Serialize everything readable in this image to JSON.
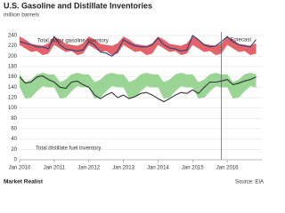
{
  "chart_data": {
    "type": "band-line",
    "title": "U.S. Gasoline and Distillate Inventories",
    "subtitle": "million barrels",
    "categories": [
      "2010-01",
      "2010-03",
      "2010-05",
      "2010-07",
      "2010-09",
      "2010-11",
      "2011-01",
      "2011-03",
      "2011-05",
      "2011-07",
      "2011-09",
      "2011-11",
      "2012-01",
      "2012-03",
      "2012-05",
      "2012-07",
      "2012-09",
      "2012-11",
      "2013-01",
      "2013-03",
      "2013-05",
      "2013-07",
      "2013-09",
      "2013-11",
      "2014-01",
      "2014-03",
      "2014-05",
      "2014-07",
      "2014-09",
      "2014-11",
      "2015-01",
      "2015-03",
      "2015-05",
      "2015-07",
      "2015-09",
      "2015-11",
      "2016-01",
      "2016-03",
      "2016-05",
      "2016-07",
      "2016-09",
      "2016-11"
    ],
    "xticks": [
      {
        "value": "2010-01",
        "label": "Jan 2010"
      },
      {
        "value": "2011-01",
        "label": "Jan 2011"
      },
      {
        "value": "2012-01",
        "label": "Jan 2012"
      },
      {
        "value": "2013-01",
        "label": "Jan 2013"
      },
      {
        "value": "2014-01",
        "label": "Jan 2014"
      },
      {
        "value": "2015-01",
        "label": "Jan 2015"
      },
      {
        "value": "2016-01",
        "label": "Jan 2016"
      }
    ],
    "ylim": [
      0,
      240
    ],
    "yticks": [
      0,
      20,
      40,
      60,
      80,
      100,
      120,
      140,
      160,
      180,
      200,
      220,
      240
    ],
    "grid": true,
    "forecast_x": "2015-11",
    "forecast_label": "Forecast",
    "groups": [
      {
        "name": "Total motor gasoline inventory",
        "band_color": "#e0525a",
        "line_color": "#2b3f7a",
        "upper": [
          238,
          232,
          224,
          222,
          220,
          225,
          238,
          232,
          224,
          222,
          220,
          225,
          238,
          232,
          224,
          222,
          220,
          225,
          238,
          232,
          224,
          222,
          220,
          225,
          238,
          232,
          224,
          222,
          220,
          225,
          238,
          232,
          224,
          222,
          220,
          225,
          238,
          232,
          224,
          222,
          220,
          225
        ],
        "lower": [
          222,
          215,
          208,
          210,
          202,
          205,
          222,
          215,
          208,
          210,
          202,
          205,
          222,
          215,
          208,
          210,
          202,
          205,
          222,
          215,
          208,
          210,
          202,
          205,
          222,
          215,
          208,
          210,
          202,
          205,
          222,
          215,
          208,
          210,
          202,
          205,
          222,
          215,
          208,
          210,
          202,
          205
        ],
        "values": [
          228,
          225,
          222,
          218,
          218,
          214,
          238,
          222,
          214,
          212,
          210,
          212,
          228,
          222,
          208,
          206,
          200,
          210,
          232,
          225,
          220,
          218,
          218,
          222,
          235,
          222,
          216,
          214,
          210,
          212,
          240,
          232,
          222,
          218,
          220,
          228,
          238,
          228,
          222,
          220,
          218,
          232
        ]
      },
      {
        "name": "Total distillate fuel inventory",
        "band_color": "#8fd08a",
        "line_color": "#333333",
        "upper": [
          165,
          150,
          155,
          165,
          168,
          165,
          165,
          150,
          155,
          165,
          168,
          165,
          165,
          150,
          155,
          165,
          168,
          165,
          165,
          150,
          155,
          165,
          168,
          165,
          165,
          150,
          155,
          165,
          168,
          165,
          165,
          150,
          155,
          165,
          168,
          165,
          165,
          150,
          155,
          165,
          168,
          165
        ],
        "lower": [
          140,
          118,
          120,
          132,
          142,
          140,
          140,
          118,
          120,
          132,
          142,
          140,
          140,
          118,
          120,
          132,
          142,
          140,
          140,
          118,
          120,
          132,
          142,
          140,
          140,
          118,
          120,
          132,
          142,
          140,
          140,
          118,
          120,
          132,
          142,
          140,
          140,
          118,
          120,
          132,
          142,
          140
        ],
        "values": [
          160,
          148,
          150,
          160,
          162,
          155,
          150,
          140,
          138,
          150,
          152,
          145,
          140,
          125,
          118,
          125,
          130,
          120,
          125,
          118,
          122,
          128,
          130,
          125,
          118,
          112,
          118,
          125,
          130,
          128,
          135,
          128,
          140,
          150,
          150,
          152,
          155,
          145,
          148,
          152,
          155,
          160
        ]
      }
    ],
    "footer_left": "Market Realist",
    "source": "Source: EIA"
  }
}
